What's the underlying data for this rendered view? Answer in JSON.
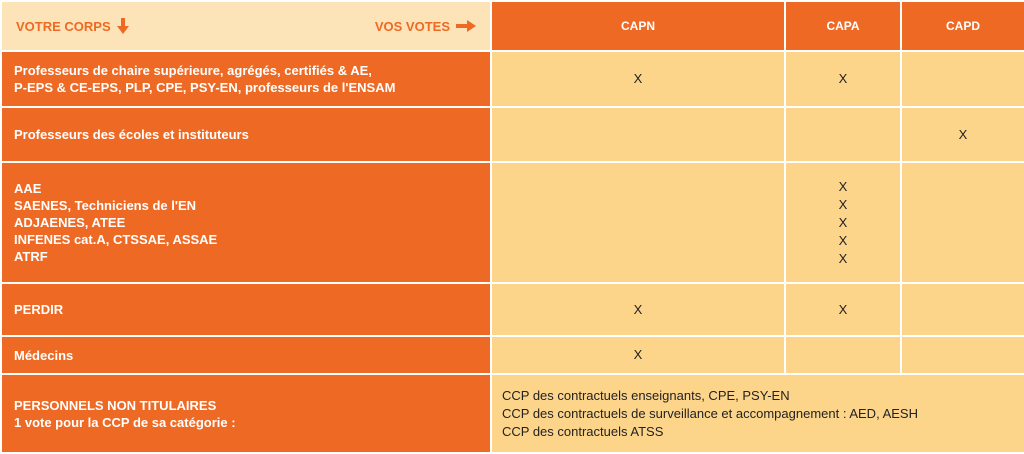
{
  "header": {
    "left_label": "VOTRE CORPS",
    "left_icon": "arrow-down-icon",
    "right_label": "VOS VOTES",
    "right_icon": "arrow-right-icon",
    "columns": [
      "CAPN",
      "CAPA",
      "CAPD"
    ]
  },
  "rows": [
    {
      "label_lines": [
        "Professeurs de chaire supérieure, agrégés, certifiés & AE,",
        "P-EPS & CE-EPS, PLP, CPE, PSY-EN, professeurs de l'ENSAM"
      ],
      "capn": [
        "X"
      ],
      "capa": [
        "X"
      ],
      "capd": []
    },
    {
      "label_lines": [
        "Professeurs des écoles et instituteurs"
      ],
      "capn": [],
      "capa": [],
      "capd": [
        "X"
      ]
    },
    {
      "label_lines": [
        "AAE",
        "SAENES, Techniciens de l'EN",
        "ADJAENES, ATEE",
        "INFENES cat.A, CTSSAE, ASSAE",
        "ATRF"
      ],
      "capn": [],
      "capa": [
        "X",
        "X",
        "X",
        "X",
        "X"
      ],
      "capd": []
    },
    {
      "label_lines": [
        "PERDIR"
      ],
      "capn": [
        "X"
      ],
      "capa": [
        "X"
      ],
      "capd": []
    },
    {
      "label_lines": [
        "Médecins"
      ],
      "capn": [
        "X"
      ],
      "capa": [],
      "capd": []
    }
  ],
  "non_titulaires": {
    "label_lines": [
      "PERSONNELS NON TITULAIRES",
      "1 vote pour la CCP de sa catégorie :"
    ],
    "ccp_lines": [
      "CCP des contractuels enseignants, CPE, PSY-EN",
      "CCP des contractuels de surveillance et accompagnement : AED, AESH",
      "CCP des contractuels ATSS"
    ]
  },
  "colors": {
    "orange": "#ee6a24",
    "light_orange": "#fdd58a",
    "header_bg": "#fde3b8"
  }
}
